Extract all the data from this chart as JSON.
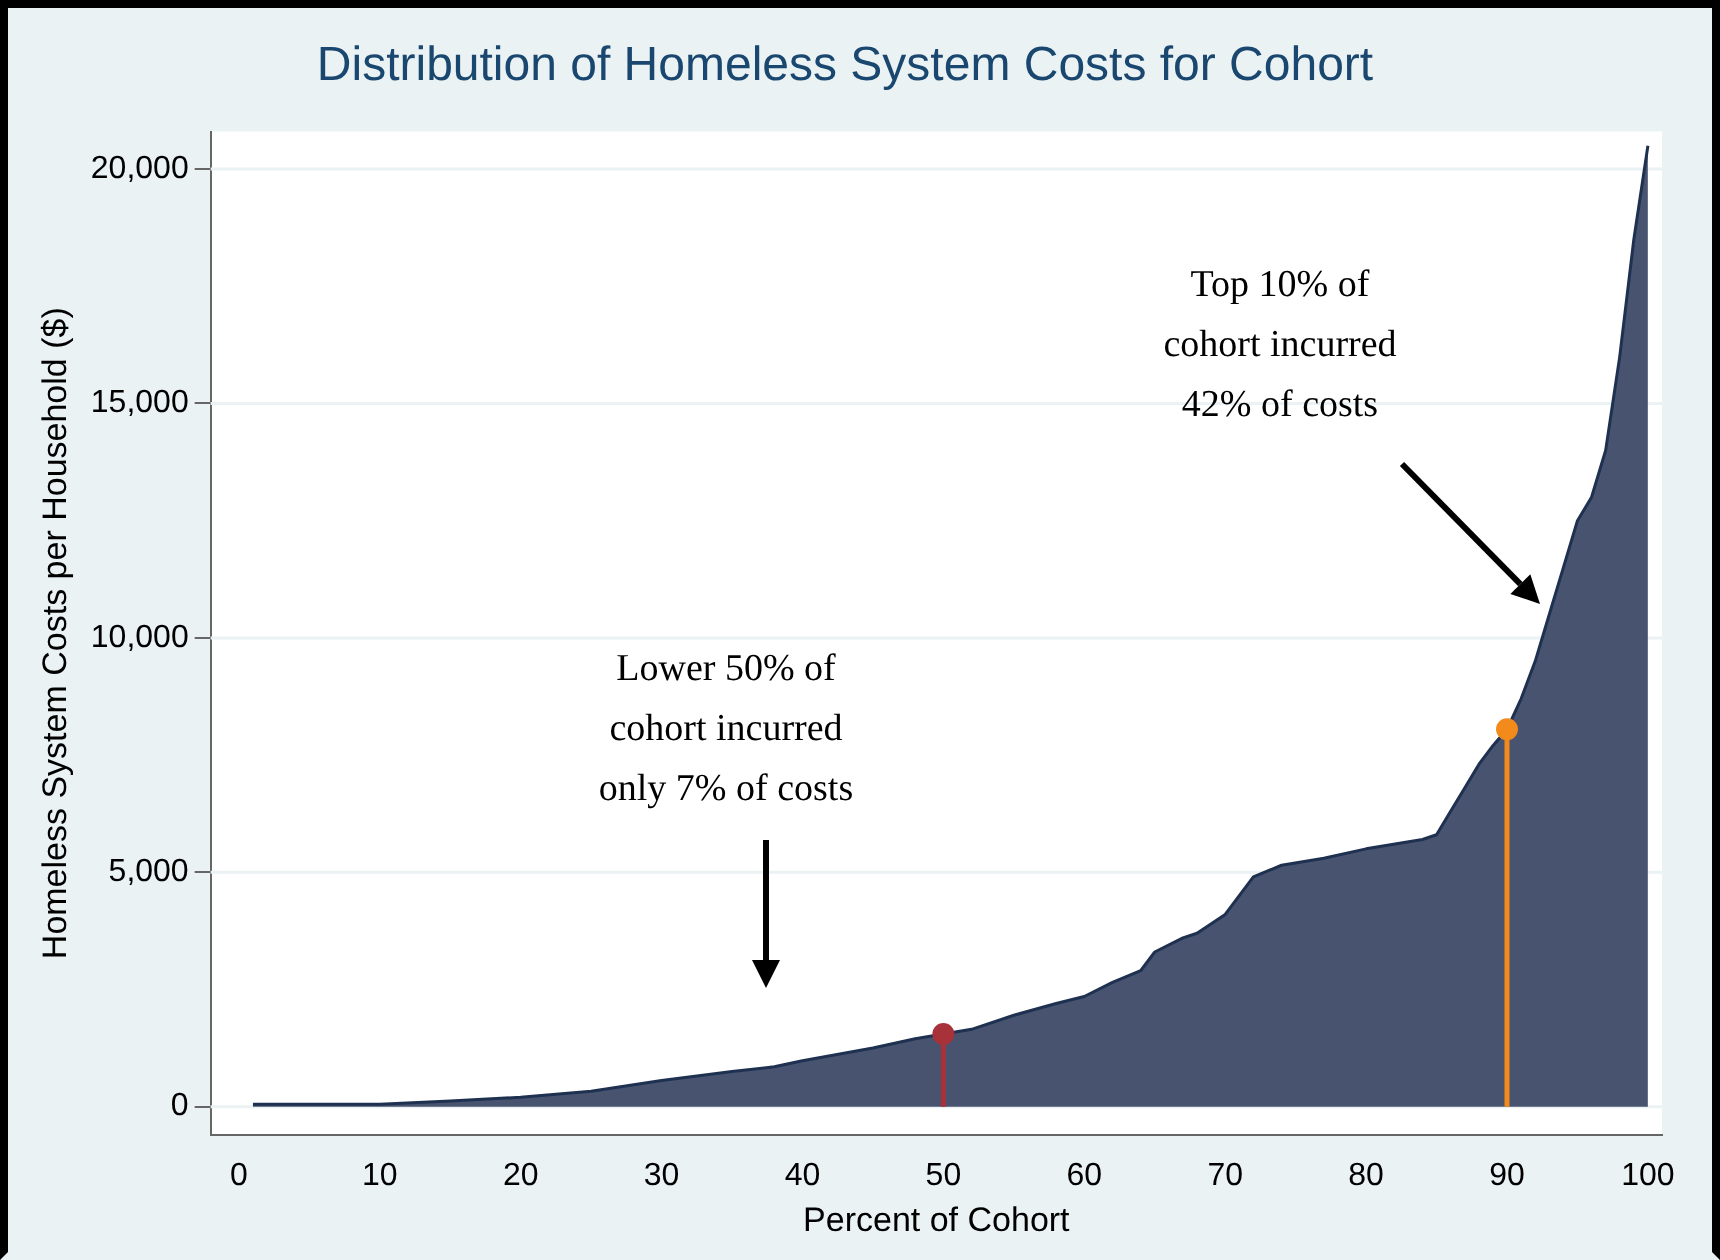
{
  "chart_data": {
    "type": "area",
    "title": "Distribution of Homeless System Costs for Cohort",
    "xlabel": "Percent of Cohort",
    "ylabel": "Homeless System Costs per Household ($)",
    "series": [
      {
        "color": "#48536f",
        "x": [
          1,
          10,
          15,
          20,
          25,
          30,
          35,
          38,
          40,
          45,
          48,
          50,
          52,
          55,
          58,
          60,
          62,
          64,
          65,
          67,
          68,
          70,
          71,
          72,
          74,
          77,
          80,
          84,
          85,
          86,
          87,
          88,
          89,
          90,
          91,
          92,
          93,
          94,
          95,
          96,
          97,
          98,
          99,
          100
        ],
        "values": [
          50,
          50,
          120,
          200,
          330,
          560,
          750,
          850,
          980,
          1250,
          1450,
          1550,
          1650,
          1950,
          2200,
          2350,
          2650,
          2900,
          3300,
          3600,
          3700,
          4100,
          4500,
          4900,
          5150,
          5300,
          5500,
          5700,
          5800,
          6300,
          6800,
          7300,
          7700,
          8050,
          8700,
          9500,
          10500,
          11500,
          12500,
          13000,
          14000,
          16000,
          18500,
          20500
        ]
      },
      {
        "type": "lollipop",
        "color": "#a8323a",
        "x": [
          50
        ],
        "values": [
          1550
        ]
      },
      {
        "type": "lollipop",
        "color": "#f28a1c",
        "x": [
          90
        ],
        "values": [
          8050
        ]
      }
    ],
    "xlim": [
      -2,
      101
    ],
    "xticks": [
      0,
      10,
      20,
      30,
      40,
      50,
      60,
      70,
      80,
      90,
      100
    ],
    "ylim": [
      -600,
      20800
    ],
    "yticks": [
      0,
      {
        "value": 5000,
        "label": "5,000"
      },
      {
        "value": 10000,
        "label": "10,000"
      },
      {
        "value": 15000,
        "label": "15,000"
      },
      {
        "value": 20000,
        "label": "20,000"
      }
    ],
    "grid": "y",
    "annotations": [
      "Lower 50% of\ncohort incurred\nonly 7% of costs",
      "Top 10% of\ncohort incurred\n42% of costs"
    ]
  }
}
